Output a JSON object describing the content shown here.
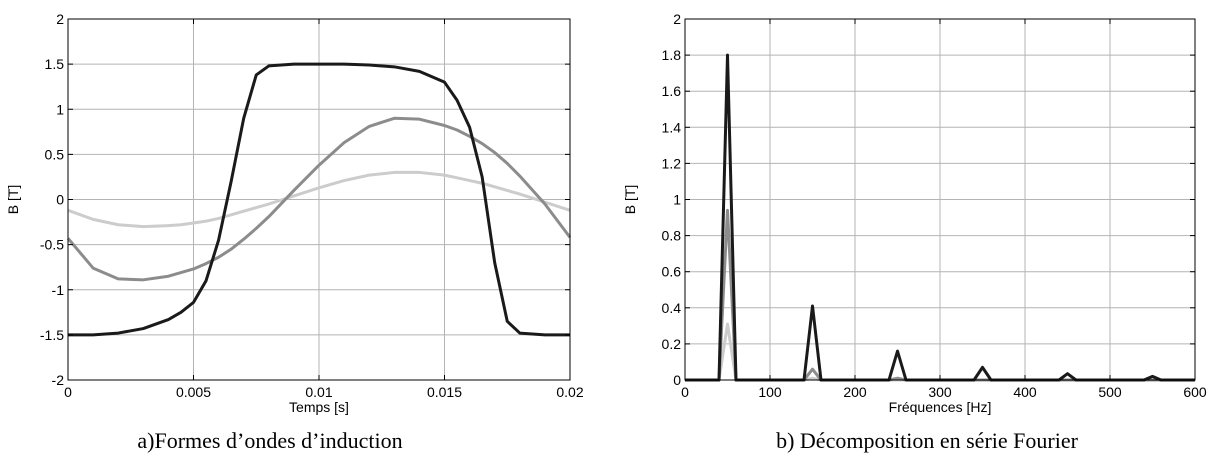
{
  "chart_data": [
    {
      "type": "line",
      "caption": "a)Formes d’ondes d’induction",
      "xlabel": "Temps [s]",
      "ylabel": "B [T]",
      "xlim": [
        0,
        0.02
      ],
      "ylim": [
        -2,
        2
      ],
      "xticks": [
        "0",
        "0.005",
        "0.01",
        "0.015",
        "0.02"
      ],
      "yticks": [
        "-2",
        "-1.5",
        "-1",
        "-0.5",
        "0",
        "0.5",
        "1",
        "1.5",
        "2"
      ],
      "grid": true,
      "x": [
        0,
        0.001,
        0.002,
        0.003,
        0.004,
        0.0045,
        0.005,
        0.0055,
        0.006,
        0.0065,
        0.007,
        0.0075,
        0.008,
        0.009,
        0.01,
        0.011,
        0.012,
        0.013,
        0.014,
        0.015,
        0.0155,
        0.016,
        0.0165,
        0.017,
        0.0175,
        0.018,
        0.019,
        0.02
      ],
      "series": [
        {
          "color": "#1a1a1a",
          "values": [
            -1.5,
            -1.5,
            -1.48,
            -1.43,
            -1.33,
            -1.25,
            -1.14,
            -0.9,
            -0.45,
            0.2,
            0.9,
            1.38,
            1.48,
            1.5,
            1.5,
            1.5,
            1.49,
            1.47,
            1.42,
            1.3,
            1.1,
            0.8,
            0.25,
            -0.7,
            -1.35,
            -1.48,
            -1.5,
            -1.5
          ]
        },
        {
          "color": "#8c8c8c",
          "values": [
            -0.43,
            -0.76,
            -0.88,
            -0.89,
            -0.85,
            -0.81,
            -0.77,
            -0.71,
            -0.64,
            -0.55,
            -0.44,
            -0.32,
            -0.19,
            0.1,
            0.38,
            0.63,
            0.81,
            0.9,
            0.89,
            0.82,
            0.77,
            0.7,
            0.62,
            0.52,
            0.4,
            0.26,
            -0.05,
            -0.42
          ]
        },
        {
          "color": "#cccccc",
          "values": [
            -0.12,
            -0.22,
            -0.28,
            -0.3,
            -0.29,
            -0.28,
            -0.26,
            -0.24,
            -0.21,
            -0.17,
            -0.13,
            -0.09,
            -0.05,
            0.04,
            0.13,
            0.21,
            0.27,
            0.3,
            0.3,
            0.27,
            0.24,
            0.21,
            0.18,
            0.14,
            0.1,
            0.06,
            -0.03,
            -0.12
          ]
        }
      ]
    },
    {
      "type": "line",
      "caption": "b) Décomposition en série Fourier",
      "xlabel": "Fréquences [Hz]",
      "ylabel": "B [T]",
      "xlim": [
        0,
        600
      ],
      "ylim": [
        0,
        2
      ],
      "xticks": [
        "0",
        "100",
        "200",
        "300",
        "400",
        "500",
        "600"
      ],
      "yticks": [
        "0",
        "0.2",
        "0.4",
        "0.6",
        "0.8",
        "1",
        "1.2",
        "1.4",
        "1.6",
        "1.8",
        "2"
      ],
      "grid": true,
      "x": [
        0,
        40,
        50,
        60,
        100,
        140,
        150,
        160,
        200,
        240,
        250,
        260,
        300,
        340,
        350,
        360,
        400,
        440,
        450,
        460,
        500,
        540,
        550,
        560,
        600
      ],
      "series": [
        {
          "color": "#1a1a1a",
          "values": [
            0,
            0,
            1.8,
            0,
            0,
            0,
            0.41,
            0,
            0,
            0,
            0.16,
            0,
            0,
            0,
            0.07,
            0,
            0,
            0,
            0.035,
            0,
            0,
            0,
            0.02,
            0,
            0
          ]
        },
        {
          "color": "#8c8c8c",
          "values": [
            0,
            0,
            0.94,
            0,
            0,
            0,
            0.06,
            0,
            0,
            0,
            0.01,
            0,
            0,
            0,
            0,
            0,
            0,
            0,
            0,
            0,
            0,
            0,
            0,
            0,
            0
          ]
        },
        {
          "color": "#cccccc",
          "values": [
            0,
            0,
            0.31,
            0,
            0,
            0,
            0.01,
            0,
            0,
            0,
            0,
            0,
            0,
            0,
            0,
            0,
            0,
            0,
            0,
            0,
            0,
            0,
            0,
            0,
            0
          ]
        }
      ]
    }
  ]
}
